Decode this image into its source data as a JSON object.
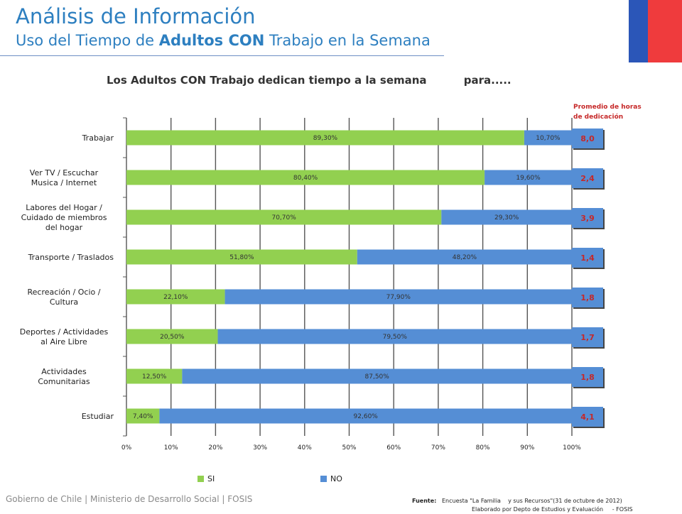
{
  "header": {
    "title": "Análisis de Información",
    "subtitle_pre": "Uso del Tiempo de ",
    "subtitle_bold": "Adultos CON",
    "subtitle_post": " Trabajo en la Semana"
  },
  "avg_header": {
    "line1": "Promedio   de horas",
    "line2": "de dedicación"
  },
  "colors": {
    "si": "#92d050",
    "no": "#558ed5",
    "avg_text": "#c62828",
    "title": "#2d7fc0",
    "flag_blue": "#2b56b8",
    "flag_red": "#ef3b3d"
  },
  "chart_data": {
    "type": "bar",
    "orientation": "horizontal",
    "stacked": true,
    "percent": true,
    "title": "Los Adultos CON Trabajo dedican tiempo a la semana          para.....",
    "categories": [
      [
        "Trabajar"
      ],
      [
        "Ver TV / Escuchar",
        "Musica / Internet"
      ],
      [
        "Labores del Hogar /",
        "Cuidado de miembros",
        "del hogar"
      ],
      [
        "Transporte  / Traslados"
      ],
      [
        "Recreación / Ocio /",
        "Cultura"
      ],
      [
        "Deportes / Actividades",
        "al Aire Libre"
      ],
      [
        "Actividades",
        "Comunitarias"
      ],
      [
        "Estudiar"
      ]
    ],
    "series": [
      {
        "name": "SI",
        "values": [
          89.3,
          80.4,
          70.7,
          51.8,
          22.1,
          20.5,
          12.5,
          7.4
        ],
        "labels": [
          "89,30%",
          "80,40%",
          "70,70%",
          "51,80%",
          "22,10%",
          "20,50%",
          "12,50%",
          "7,40%"
        ]
      },
      {
        "name": "NO",
        "values": [
          10.7,
          19.6,
          29.3,
          48.2,
          77.9,
          79.5,
          87.5,
          92.6
        ],
        "labels": [
          "10,70%",
          "19,60%",
          "29,30%",
          "48,20%",
          "77,90%",
          "79,50%",
          "87,50%",
          "92,60%"
        ]
      }
    ],
    "average_hours": [
      "8,0",
      "2,4",
      "3,9",
      "1,4",
      "1,8",
      "1,7",
      "1,8",
      "4,1"
    ],
    "xlim": [
      0,
      100
    ],
    "xticks": [
      "0%",
      "10%",
      "20%",
      "30%",
      "40%",
      "50%",
      "60%",
      "70%",
      "80%",
      "90%",
      "100%"
    ],
    "grid": true,
    "legend": "bottom"
  },
  "footer": {
    "left": "Gobierno de Chile | Ministerio de Desarrollo Social | FOSIS",
    "source_label": "Fuente:",
    "source_text": "   Encuesta \"La Familia    y sus Recursos\"(31 de octubre de 2012)",
    "source_line2": "Elaborado por Depto de Estudios y Evaluación     - FOSIS"
  }
}
